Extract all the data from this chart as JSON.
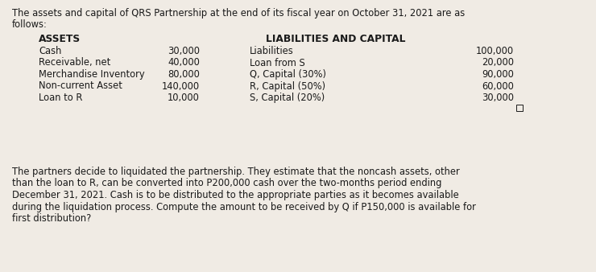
{
  "bg_color": "#f0ebe4",
  "text_color": "#1a1a1a",
  "intro_line1": "The assets and capital of QRS Partnership at the end of its fiscal year on October 31, 2021 are as",
  "intro_line2": "follows:",
  "assets_header": "ASSETS",
  "liabilities_header": "LIABILITIES AND CAPITAL",
  "assets": [
    {
      "label": "Cash",
      "value": "30,000"
    },
    {
      "label": "Receivable, net",
      "value": "40,000"
    },
    {
      "label": "Merchandise Inventory",
      "value": "80,000"
    },
    {
      "label": "Non-current Asset",
      "value": "140,000"
    },
    {
      "label": "Loan to R",
      "value": "10,000"
    }
  ],
  "liabilities": [
    {
      "label": "Liabilities",
      "value": "100,000"
    },
    {
      "label": "Loan from S",
      "value": "20,000"
    },
    {
      "label": "Q, Capital (30%)",
      "value": "90,000"
    },
    {
      "label": "R, Capital (50%)",
      "value": "60,000"
    },
    {
      "label": "S, Capital (20%)",
      "value": "30,000"
    }
  ],
  "para_lines": [
    "The partners decide to liquidated the partnership. They estimate that the noncash assets, other",
    "than the loan to R, can be converted into P200,000 cash over the two-months period ending",
    "December 31, 2021. Cash is to be distributed to the appropriate parties as it becomes available",
    "during the liquidation process. Compute the amount to be received by Q if P150,000 is available for",
    "first distribution?"
  ],
  "fs_intro": 8.3,
  "fs_header": 8.8,
  "fs_body": 8.3,
  "fs_para": 8.3,
  "fig_w": 7.4,
  "fig_h": 3.38,
  "dpi": 100
}
